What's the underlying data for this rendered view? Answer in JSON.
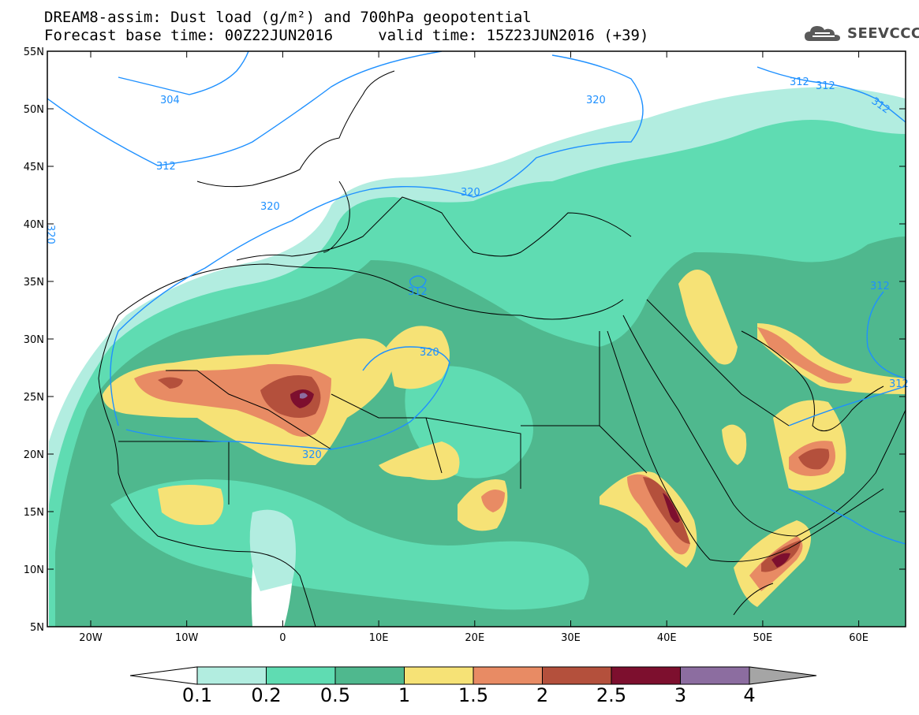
{
  "header": {
    "title_line1": "DREAM8-assim: Dust load (g/m²) and 700hPa geopotential",
    "title_line2": "Forecast base time: 00Z22JUN2016     valid time: 15Z23JUN2016 (+39)",
    "logo_text": "SEEVCCC"
  },
  "map": {
    "lat_labels": [
      "55N",
      "50N",
      "45N",
      "40N",
      "35N",
      "30N",
      "25N",
      "20N",
      "15N",
      "10N",
      "5N"
    ],
    "lon_labels": [
      "20W",
      "10W",
      "0",
      "10E",
      "20E",
      "30E",
      "40E",
      "50E",
      "60E"
    ],
    "contour_labels": [
      "304",
      "312",
      "320",
      "320",
      "320",
      "312",
      "320",
      "320",
      "320",
      "312",
      "312",
      "312",
      "320",
      "312",
      "312"
    ],
    "contour_color": "#1e90ff"
  },
  "legend": {
    "thresholds": [
      "0.1",
      "0.2",
      "0.5",
      "1",
      "1.5",
      "2",
      "2.5",
      "3",
      "4"
    ],
    "colors": [
      "#ffffff",
      "#b2ede0",
      "#5fdcb2",
      "#4fb88e",
      "#f6e276",
      "#e88b64",
      "#b4503c",
      "#7d0f2e",
      "#8c6da0",
      "#a5a5a5"
    ],
    "units": "g/m²"
  }
}
